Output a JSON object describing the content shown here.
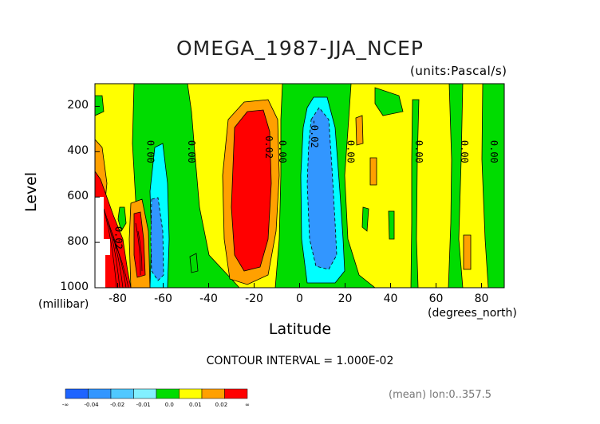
{
  "title": "OMEGA_1987-JJA_NCEP",
  "units": "(units:Pascal/s)",
  "ylabel": "Level",
  "yunits": "(millibar)",
  "xlabel": "Latitude",
  "xunits": "(degrees_north)",
  "contour_interval": "CONTOUR INTERVAL = 1.000E-02",
  "mean_info": "(mean) lon:0..357.5",
  "chart_data": {
    "type": "heatmap",
    "title": "OMEGA_1987-JJA_NCEP",
    "xlabel": "Latitude",
    "ylabel": "Level",
    "x_range": [
      -90,
      90
    ],
    "y_range": [
      1000,
      100
    ],
    "y_axis": "reversed pressure",
    "x_ticks": [
      -80,
      -60,
      -40,
      -20,
      0,
      20,
      40,
      60,
      80
    ],
    "x_tick_labels": [
      "-80",
      "-60",
      "-40",
      "-20",
      "0",
      "20",
      "40",
      "60",
      "80"
    ],
    "y_ticks": [
      200,
      400,
      600,
      800,
      1000
    ],
    "y_tick_labels": [
      "200",
      "400",
      "600",
      "800",
      "1000"
    ],
    "contour_levels": [
      -0.04,
      -0.02,
      -0.01,
      0.0,
      0.01,
      0.02
    ],
    "colorbar": {
      "labels": [
        "-∞",
        "-0.04",
        "-0.02",
        "-0.01",
        "0.0",
        "0.01",
        "0.02",
        "∞"
      ],
      "colors": [
        "#1e64ff",
        "#3296ff",
        "#50c8ff",
        "#82f0ff",
        "#00dc00",
        "#ffff00",
        "#ffa000",
        "#ff0000"
      ]
    },
    "contour_labels": [
      {
        "text": "0.00",
        "lat": -67,
        "p": 400
      },
      {
        "text": "0.00",
        "lat": -49,
        "p": 400
      },
      {
        "text": "0.02",
        "lat": -15,
        "p": 380
      },
      {
        "text": "0.00",
        "lat": -9,
        "p": 400
      },
      {
        "text": "-0.02",
        "lat": 5,
        "p": 320
      },
      {
        "text": "0.00",
        "lat": 21,
        "p": 400
      },
      {
        "text": "0.00",
        "lat": 51,
        "p": 400
      },
      {
        "text": "0.00",
        "lat": 71,
        "p": 400
      },
      {
        "text": "0.00",
        "lat": 84,
        "p": 400
      },
      {
        "text": "0.02",
        "lat": -81,
        "p": 780
      }
    ],
    "grid": false
  }
}
